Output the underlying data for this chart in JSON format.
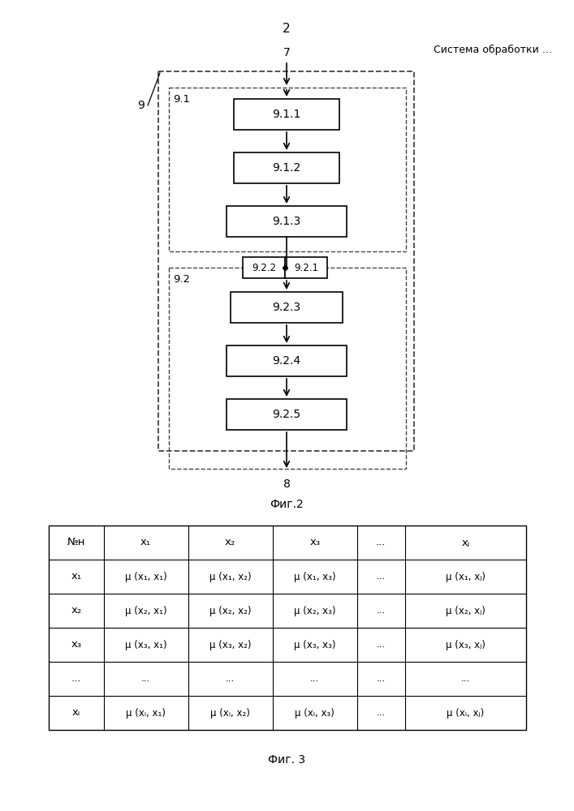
{
  "page_number": "2",
  "header_text": "Система обработки …",
  "fig2_label": "Фиг.2",
  "fig3_label": "Фиг. 3",
  "node_7": "7",
  "node_8": "8",
  "node_9": "9",
  "node_91": "9.1",
  "node_92": "9.2",
  "node_911": "9.1.1",
  "node_912": "9.1.2",
  "node_913": "9.1.3",
  "node_921": "9.2.1",
  "node_922": "9.2.2",
  "node_923": "9.2.3",
  "node_924": "9.2.4",
  "node_925": "9.2.5",
  "bg_color": "#ffffff",
  "arrow_color": "#000000",
  "table_header_row": [
    "№н",
    "x₁",
    "x₂",
    "x₃",
    "...",
    "xⱼ"
  ],
  "table_col0": [
    "x₁",
    "x₂",
    "x₃",
    "...",
    "xᵢ"
  ],
  "table_cells": [
    [
      "μ (x₁, x₁)",
      "μ (x₁, x₂)",
      "μ (x₁, x₃)",
      "...",
      "μ (x₁, xⱼ)"
    ],
    [
      "μ (x₂, x₁)",
      "μ (x₂, x₂)",
      "μ (x₂, x₃)",
      "...",
      "μ (x₂, xⱼ)"
    ],
    [
      "μ (x₃, x₁)",
      "μ (x₃, x₂)",
      "μ (x₃, x₃)",
      "...",
      "μ (x₃, xⱼ)"
    ],
    [
      "...",
      "...",
      "...",
      "...",
      "..."
    ],
    [
      "μ (xᵢ, x₁)",
      "μ (xᵢ, x₂)",
      "μ (xᵢ, x₃)",
      "...",
      "μ (xᵢ, xⱼ)"
    ]
  ]
}
